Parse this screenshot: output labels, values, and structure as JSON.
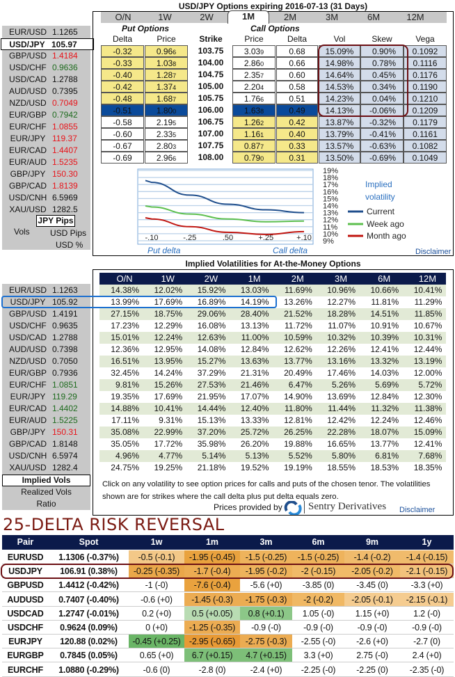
{
  "options": {
    "title": "USD/JPY Options expiring 2016-07-13 (31 Days)",
    "tabs": [
      "O/N",
      "1W",
      "2W",
      "1M",
      "2M",
      "3M",
      "6M",
      "12M"
    ],
    "active_tab": "1M",
    "put_label": "Put Options",
    "call_label": "Call Options",
    "headers": {
      "put_delta": "Delta",
      "put_price": "Price",
      "strike": "Strike",
      "call_price": "Price",
      "call_delta": "Delta",
      "vol": "Vol",
      "skew": "Skew",
      "vega": "Vega"
    },
    "rows": [
      {
        "put_delta": "-0.32",
        "put_price": "0.96",
        "put_pip": "6",
        "strike": "103.75",
        "call_price": "3.03",
        "call_pip": "9",
        "call_delta": "0.68",
        "vol": "15.09%",
        "skew": "0.90%",
        "vega": "0.1092"
      },
      {
        "put_delta": "-0.33",
        "put_price": "1.03",
        "put_pip": "8",
        "strike": "104.00",
        "call_price": "2.86",
        "call_pip": "0",
        "call_delta": "0.66",
        "vol": "14.98%",
        "skew": "0.78%",
        "vega": "0.1116"
      },
      {
        "put_delta": "-0.40",
        "put_price": "1.28",
        "put_pip": "7",
        "strike": "104.75",
        "call_price": "2.35",
        "call_pip": "7",
        "call_delta": "0.60",
        "vol": "14.64%",
        "skew": "0.45%",
        "vega": "0.1176"
      },
      {
        "put_delta": "-0.42",
        "put_price": "1.37",
        "put_pip": "4",
        "strike": "105.00",
        "call_price": "2.20",
        "call_pip": "4",
        "call_delta": "0.58",
        "vol": "14.53%",
        "skew": "0.34%",
        "vega": "0.1190"
      },
      {
        "put_delta": "-0.48",
        "put_price": "1.68",
        "put_pip": "7",
        "strike": "105.75",
        "call_price": "1.76",
        "call_pip": "6",
        "call_delta": "0.51",
        "vol": "14.23%",
        "skew": "0.04%",
        "vega": "0.1210"
      },
      {
        "put_delta": "-0.51",
        "put_price": "1.80",
        "put_pip": "0",
        "strike": "106.00",
        "call_price": "1.63",
        "call_pip": "8",
        "call_delta": "0.49",
        "vol": "14.13%",
        "skew": "-0.06%",
        "vega": "0.1209"
      },
      {
        "put_delta": "-0.58",
        "put_price": "2.19",
        "put_pip": "5",
        "strike": "106.75",
        "call_price": "1.26",
        "call_pip": "2",
        "call_delta": "0.42",
        "vol": "13.87%",
        "skew": "-0.32%",
        "vega": "0.1179"
      },
      {
        "put_delta": "-0.60",
        "put_price": "2.33",
        "put_pip": "5",
        "strike": "107.00",
        "call_price": "1.16",
        "call_pip": "1",
        "call_delta": "0.40",
        "vol": "13.79%",
        "skew": "-0.41%",
        "vega": "0.1161"
      },
      {
        "put_delta": "-0.67",
        "put_price": "2.80",
        "put_pip": "3",
        "strike": "107.75",
        "call_price": "0.87",
        "call_pip": "7",
        "call_delta": "0.33",
        "vol": "13.57%",
        "skew": "-0.63%",
        "vega": "0.1082"
      },
      {
        "put_delta": "-0.69",
        "put_price": "2.96",
        "put_pip": "6",
        "strike": "108.00",
        "call_price": "0.79",
        "call_pip": "0",
        "call_delta": "0.31",
        "vol": "13.50%",
        "skew": "-0.69%",
        "vega": "0.1049"
      }
    ],
    "disclaimer": "Disclaimer"
  },
  "sidebar1": {
    "pairs": [
      {
        "pair": "EUR/USD",
        "value": "1.1265",
        "color": "#111111"
      },
      {
        "pair": "USD/JPY",
        "value": "105.97",
        "color": "#111111",
        "selected": true
      },
      {
        "pair": "GBP/USD",
        "value": "1.4184",
        "color": "#e8141a"
      },
      {
        "pair": "USD/CHF",
        "value": "0.9636",
        "color": "#1e6b1e"
      },
      {
        "pair": "USD/CAD",
        "value": "1.2788",
        "color": "#111111"
      },
      {
        "pair": "AUD/USD",
        "value": "0.7395",
        "color": "#111111"
      },
      {
        "pair": "NZD/USD",
        "value": "0.7049",
        "color": "#e8141a"
      },
      {
        "pair": "EUR/GBP",
        "value": "0.7942",
        "color": "#1e6b1e"
      },
      {
        "pair": "EUR/CHF",
        "value": "1.0855",
        "color": "#e8141a"
      },
      {
        "pair": "EUR/JPY",
        "value": "119.37",
        "color": "#e8141a"
      },
      {
        "pair": "EUR/CAD",
        "value": "1.4407",
        "color": "#e8141a"
      },
      {
        "pair": "EUR/AUD",
        "value": "1.5235",
        "color": "#e8141a"
      },
      {
        "pair": "GBP/JPY",
        "value": "150.30",
        "color": "#e8141a"
      },
      {
        "pair": "GBP/CAD",
        "value": "1.8139",
        "color": "#e8141a"
      },
      {
        "pair": "USD/CNH",
        "value": "6.5969",
        "color": "#111111"
      },
      {
        "pair": "XAU/USD",
        "value": "1282.5",
        "color": "#111111"
      }
    ],
    "units": {
      "selected": "JPY Pips",
      "vols": "Vols",
      "usd_pips": "USD Pips",
      "usd_pct": "USD %"
    }
  },
  "smile_chart": {
    "legend_title": "Implied volatility",
    "x_ticks": [
      "-.10",
      "-.25",
      ".50",
      "+.25",
      "+.10"
    ],
    "y_ticks": [
      "19%",
      "18%",
      "17%",
      "16%",
      "15%",
      "14%",
      "13%",
      "12%",
      "11%",
      "10%",
      "9%"
    ],
    "put_label": "Put delta",
    "call_label": "Call delta"
  },
  "chart_data": {
    "type": "line",
    "x": [
      "-.10",
      "-.25",
      ".50",
      "+.25",
      "+.10"
    ],
    "ylim": [
      9,
      19
    ],
    "grid": true,
    "legend": "right",
    "series": [
      {
        "name": "Current",
        "color": "#1f4e8c",
        "values": [
          17.3,
          15.5,
          14.2,
          13.4,
          13.0
        ]
      },
      {
        "name": "Week ago",
        "color": "#5cbf4e",
        "values": [
          13.8,
          12.8,
          12.1,
          11.7,
          11.8
        ]
      },
      {
        "name": "Month ago",
        "color": "#c0140e",
        "values": [
          12.1,
          11.0,
          10.2,
          9.9,
          10.3
        ]
      }
    ]
  },
  "atm": {
    "title": "Implied Volatilities for At-the-Money Options",
    "tenors": [
      "O/N",
      "1W",
      "2W",
      "1M",
      "2M",
      "3M",
      "6M",
      "12M"
    ],
    "rows": [
      {
        "pair": "EUR/USD",
        "value": "1.1263",
        "color": "#111111",
        "vols": [
          "14.38%",
          "12.02%",
          "15.92%",
          "13.03%",
          "11.69%",
          "10.96%",
          "10.66%",
          "10.41%"
        ]
      },
      {
        "pair": "USD/JPY",
        "value": "105.92",
        "color": "#111111",
        "vols": [
          "13.99%",
          "17.69%",
          "16.89%",
          "14.19%",
          "13.26%",
          "12.27%",
          "11.81%",
          "11.29%"
        ]
      },
      {
        "pair": "GBP/USD",
        "value": "1.4191",
        "color": "#111111",
        "vols": [
          "27.15%",
          "18.75%",
          "29.06%",
          "28.40%",
          "21.52%",
          "18.28%",
          "14.51%",
          "11.85%"
        ]
      },
      {
        "pair": "USD/CHF",
        "value": "0.9635",
        "color": "#111111",
        "vols": [
          "17.23%",
          "12.29%",
          "16.08%",
          "13.13%",
          "11.72%",
          "11.07%",
          "10.91%",
          "10.67%"
        ]
      },
      {
        "pair": "USD/CAD",
        "value": "1.2788",
        "color": "#111111",
        "vols": [
          "15.01%",
          "12.24%",
          "12.63%",
          "11.00%",
          "10.59%",
          "10.32%",
          "10.39%",
          "10.31%"
        ]
      },
      {
        "pair": "AUD/USD",
        "value": "0.7398",
        "color": "#111111",
        "vols": [
          "12.36%",
          "12.95%",
          "14.08%",
          "12.84%",
          "12.62%",
          "12.26%",
          "12.41%",
          "12.44%"
        ]
      },
      {
        "pair": "NZD/USD",
        "value": "0.7050",
        "color": "#111111",
        "vols": [
          "16.51%",
          "13.95%",
          "15.27%",
          "13.63%",
          "13.77%",
          "13.16%",
          "13.32%",
          "13.19%"
        ]
      },
      {
        "pair": "EUR/GBP",
        "value": "0.7936",
        "color": "#111111",
        "vols": [
          "32.45%",
          "14.24%",
          "37.29%",
          "21.31%",
          "20.49%",
          "17.46%",
          "14.03%",
          "12.00%"
        ]
      },
      {
        "pair": "EUR/CHF",
        "value": "1.0851",
        "color": "#1e6b1e",
        "vols": [
          "9.81%",
          "15.26%",
          "27.53%",
          "21.46%",
          "6.47%",
          "5.26%",
          "5.69%",
          "5.72%"
        ]
      },
      {
        "pair": "EUR/JPY",
        "value": "119.29",
        "color": "#1e6b1e",
        "vols": [
          "19.35%",
          "17.69%",
          "21.95%",
          "17.07%",
          "14.90%",
          "13.69%",
          "12.84%",
          "12.30%"
        ]
      },
      {
        "pair": "EUR/CAD",
        "value": "1.4402",
        "color": "#1e6b1e",
        "vols": [
          "14.88%",
          "10.41%",
          "14.44%",
          "12.40%",
          "11.80%",
          "11.44%",
          "11.32%",
          "11.38%"
        ]
      },
      {
        "pair": "EUR/AUD",
        "value": "1.5225",
        "color": "#1e6b1e",
        "vols": [
          "17.11%",
          "9.31%",
          "15.13%",
          "13.33%",
          "12.81%",
          "12.42%",
          "12.24%",
          "12.46%"
        ]
      },
      {
        "pair": "GBP/JPY",
        "value": "150.31",
        "color": "#e8141a",
        "vols": [
          "35.08%",
          "22.99%",
          "37.20%",
          "25.72%",
          "26.25%",
          "22.28%",
          "18.07%",
          "15.09%"
        ]
      },
      {
        "pair": "GBP/CAD",
        "value": "1.8148",
        "color": "#111111",
        "vols": [
          "35.05%",
          "17.72%",
          "35.98%",
          "26.20%",
          "19.88%",
          "16.65%",
          "13.77%",
          "12.41%"
        ]
      },
      {
        "pair": "USD/CNH",
        "value": "6.5974",
        "color": "#111111",
        "vols": [
          "4.96%",
          "4.77%",
          "5.14%",
          "5.13%",
          "5.52%",
          "5.80%",
          "6.81%",
          "7.68%"
        ]
      },
      {
        "pair": "XAU/USD",
        "value": "1282.4",
        "color": "#111111",
        "vols": [
          "24.75%",
          "19.25%",
          "21.18%",
          "19.52%",
          "19.19%",
          "18.55%",
          "18.53%",
          "18.35%"
        ]
      }
    ],
    "modes": [
      "Implied Vols",
      "Realized Vols",
      "Ratio"
    ],
    "note": "Click on any volatility to see option prices for calls and puts of the chosen tenor. The volatilities shown are for strikes where the call delta plus put delta equals zero.",
    "provided_by": "Prices provided by",
    "provider": "Sentry Derivatives",
    "disclaimer": "Disclaimer"
  },
  "risk_reversal": {
    "title": "25-DELTA RISK REVERSAL",
    "headers": [
      "Pair",
      "Spot",
      "1w",
      "1m",
      "3m",
      "6m",
      "9m",
      "1y"
    ],
    "rows": [
      {
        "pair": "EURUSD",
        "spot": "1.1306 (-0.37%)",
        "cells": [
          "-0.5 (-0.1)",
          "-1.95 (-0.45)",
          "-1.5 (-0.25)",
          "-1.5 (-0.25)",
          "-1.4 (-0.2)",
          "-1.4 (-0.15)"
        ],
        "colors": [
          "#f3c888",
          "#e9a23e",
          "#eeb35c",
          "#eeb35c",
          "#f0bb6c",
          "#f0bb6c"
        ]
      },
      {
        "pair": "USDJPY",
        "spot": "106.91 (0.38%)",
        "cells": [
          "-0.25 (-0.35)",
          "-1.7 (-0.4)",
          "-1.95 (-0.2)",
          "-2 (-0.15)",
          "-2.05 (-0.2)",
          "-2.1 (-0.15)"
        ],
        "colors": [
          "#eaa74a",
          "#ecac52",
          "#eeb35c",
          "#f0ba68",
          "#f0ba68",
          "#f3c27c"
        ]
      },
      {
        "pair": "GBPUSD",
        "spot": "1.4412 (-0.42%)",
        "cells": [
          "-1 (-0)",
          "-7.6 (-0.4)",
          "-5.6 (+0)",
          "-3.85 (0)",
          "-3.45 (0)",
          "-3.3 (+0)"
        ],
        "colors": [
          "#ffffff",
          "#e9a23e",
          "#ffffff",
          "#ffffff",
          "#ffffff",
          "#ffffff"
        ]
      },
      {
        "pair": "AUDUSD",
        "spot": "0.7407 (-0.40%)",
        "cells": [
          "-0.6 (+0)",
          "-1.45 (-0.3)",
          "-1.75 (-0.3)",
          "-2 (-0.2)",
          "-2.05 (-0.1)",
          "-2.15 (-0.1)"
        ],
        "colors": [
          "#ffffff",
          "#ecac52",
          "#ecac52",
          "#f0b864",
          "#f5cc90",
          "#f5cc90"
        ]
      },
      {
        "pair": "USDCAD",
        "spot": "1.2747 (-0.01%)",
        "cells": [
          "0.2 (+0)",
          "0.5 (+0.05)",
          "0.8 (+0.1)",
          "1.05 (-0)",
          "1.15 (+0)",
          "1.2 (-0)"
        ],
        "colors": [
          "#ffffff",
          "#b9dcb3",
          "#8cc788",
          "#ffffff",
          "#ffffff",
          "#ffffff"
        ]
      },
      {
        "pair": "USDCHF",
        "spot": "0.9624 (0.09%)",
        "cells": [
          "0 (+0)",
          "-1.25 (-0.35)",
          "-0.9 (-0)",
          "-0.9 (-0)",
          "-0.9 (-0)",
          "-0.9 (-0)"
        ],
        "colors": [
          "#ffffff",
          "#ecac52",
          "#ffffff",
          "#ffffff",
          "#ffffff",
          "#ffffff"
        ]
      },
      {
        "pair": "EURJPY",
        "spot": "120.88 (0.02%)",
        "cells": [
          "-0.45 (+0.25)",
          "-2.95 (-0.65)",
          "-2.75 (-0.3)",
          "-2.55 (-0)",
          "-2.6 (+0)",
          "-2.7 (0)"
        ],
        "colors": [
          "#6ab566",
          "#e89a35",
          "#ecac52",
          "#ffffff",
          "#ffffff",
          "#ffffff"
        ]
      },
      {
        "pair": "EURGBP",
        "spot": "0.7845 (0.05%)",
        "cells": [
          "0.65 (+0)",
          "6.7 (+0.15)",
          "4.7 (+0.15)",
          "3.3 (+0)",
          "2.75 (-0)",
          "2.4 (+0)"
        ],
        "colors": [
          "#ffffff",
          "#7dbf78",
          "#7dbf78",
          "#ffffff",
          "#ffffff",
          "#ffffff"
        ]
      },
      {
        "pair": "EURCHF",
        "spot": "1.0880 (-0.29%)",
        "cells": [
          "-0.6 (0)",
          "-2.8 (0)",
          "-2.4 (+0)",
          "-2.25 (-0)",
          "-2.25 (0)",
          "-2.35 (-0)"
        ],
        "colors": [
          "#ffffff",
          "#ffffff",
          "#ffffff",
          "#ffffff",
          "#ffffff",
          "#ffffff"
        ]
      }
    ]
  },
  "colors": {
    "navy": "#0b1a4a",
    "title_red": "#7a1a12",
    "selected_put_call": "#0a4a9a",
    "itm_yellow": "#f5e88a",
    "vol_blue": "#d3dcea",
    "atm_stripe": "#e2ead6",
    "highlight_blue": "#1a6fd0",
    "highlight_red": "#6b0e12"
  }
}
